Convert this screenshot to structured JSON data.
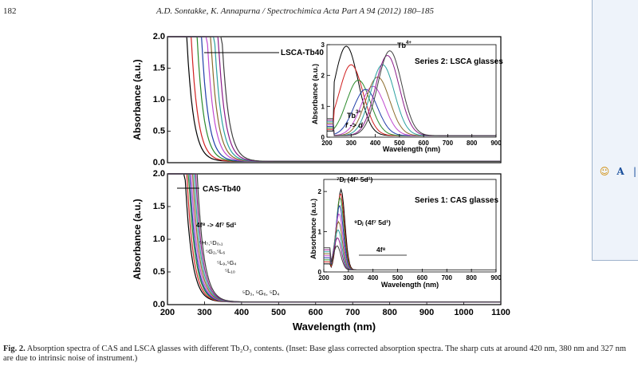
{
  "header": {
    "page_number": "182",
    "running_head": "A.D. Sontakke, K. Annapurna / Spectrochimica Acta Part A 94 (2012) 180–185"
  },
  "side_panel": {
    "icons": [
      "smiley-icon",
      "font-a-icon",
      "more-icon"
    ],
    "font_glyph": "A",
    "smile_glyph": "☺",
    "more_glyph": "|"
  },
  "caption": {
    "label": "Fig. 2.",
    "text": " Absorption spectra of CAS and LSCA glasses with different Tb₂O₃ contents. (Inset: Base glass corrected absorption spectra. The sharp cuts at around 420 nm, 380 nm and 327 nm are due to intrinsic noise of instrument.)"
  },
  "colors": {
    "series": [
      "#000000",
      "#d02020",
      "#2a8a2a",
      "#1f3ea8",
      "#c04ad0",
      "#8a6a2a",
      "#2aa0a0",
      "#8a1a8a",
      "#404040"
    ]
  },
  "chart_data": [
    {
      "type": "line",
      "panel": "top",
      "title": "",
      "xlabel": "",
      "ylabel": "Absorbance (a.u.)",
      "xlim": [
        200,
        1100
      ],
      "ylim": [
        0,
        2
      ],
      "yticks": [
        "0.0",
        "0.5",
        "1.0",
        "1.5",
        "2.0"
      ],
      "annotations": [
        "LSCA-Tb40"
      ],
      "series_edges_nm": [
        250,
        262,
        278,
        290,
        305,
        315,
        325,
        335,
        345
      ],
      "inset": {
        "type": "line",
        "xlabel": "Wavelength (nm)",
        "ylabel": "Absorbance (a.u.)",
        "xlim": [
          200,
          900
        ],
        "ylim": [
          0,
          3
        ],
        "xticks": [
          "200",
          "300",
          "400",
          "500",
          "600",
          "700",
          "800",
          "900"
        ],
        "yticks": [
          "0",
          "1",
          "2",
          "3"
        ],
        "annotations": [
          "Series 2: LSCA glasses",
          "Tb",
          "4+",
          "Tb",
          "3+",
          "f -> d"
        ],
        "peaks": [
          {
            "center": 280,
            "height": 2.9
          },
          {
            "center": 300,
            "height": 2.3
          },
          {
            "center": 330,
            "height": 1.8
          },
          {
            "center": 360,
            "height": 1.5
          },
          {
            "center": 390,
            "height": 1.6
          },
          {
            "center": 410,
            "height": 1.9
          },
          {
            "center": 430,
            "height": 2.3
          },
          {
            "center": 450,
            "height": 2.6
          },
          {
            "center": 460,
            "height": 2.75
          }
        ]
      }
    },
    {
      "type": "line",
      "panel": "bottom",
      "title": "",
      "xlabel": "Wavelength (nm)",
      "ylabel": "Absorbance (a.u.)",
      "xlim": [
        200,
        1100
      ],
      "ylim": [
        0,
        2
      ],
      "xticks": [
        "200",
        "300",
        "400",
        "500",
        "600",
        "700",
        "800",
        "900",
        "1000",
        "1100"
      ],
      "yticks": [
        "0.0",
        "0.5",
        "1.0",
        "1.5",
        "2.0"
      ],
      "annotations": [
        "CAS-Tb40",
        "4f⁸ -> 4f⁷ 5d¹",
        "⁵H₇,⁵D₀,₁",
        "⁵G₂,⁵L₆",
        "⁵L₉,⁵G₄",
        "⁵L₁₀",
        "⁵D₃, ⁵G₆, ⁵D₄"
      ],
      "series_edges_nm": [
        245,
        250,
        255,
        258,
        262,
        266,
        270,
        274,
        278
      ],
      "inset": {
        "type": "line",
        "xlabel": "Wavelength (nm)",
        "ylabel": "Absorbance (a.u.)",
        "xlim": [
          200,
          900
        ],
        "ylim": [
          0,
          2.3
        ],
        "xticks": [
          "200",
          "300",
          "400",
          "500",
          "600",
          "700",
          "800",
          "900"
        ],
        "yticks": [
          "0",
          "1",
          "2"
        ],
        "annotations": [
          "Series 1: CAS glasses",
          "⁷Dⱼ (4f⁷ 5d¹)",
          "⁹Dⱼ (4f⁷ 5d¹)",
          "4f⁸"
        ],
        "peaks": [
          {
            "center": 270,
            "height": 2.0
          },
          {
            "center": 268,
            "height": 1.9
          },
          {
            "center": 266,
            "height": 1.8
          },
          {
            "center": 264,
            "height": 1.6
          },
          {
            "center": 262,
            "height": 1.4
          },
          {
            "center": 260,
            "height": 1.2
          },
          {
            "center": 258,
            "height": 1.0
          },
          {
            "center": 256,
            "height": 0.8
          },
          {
            "center": 254,
            "height": 0.6
          }
        ]
      }
    }
  ]
}
